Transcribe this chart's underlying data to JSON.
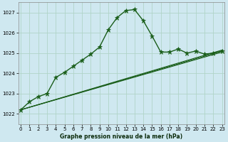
{
  "title": "Graphe pression niveau de la mer (hPa)",
  "bg_color": "#cfe8f0",
  "grid_color": "#b0d4c8",
  "line_color": "#1a5e1a",
  "x_ticks": [
    0,
    1,
    2,
    3,
    4,
    5,
    6,
    7,
    8,
    9,
    10,
    11,
    12,
    13,
    14,
    15,
    16,
    17,
    18,
    19,
    20,
    21,
    22,
    23
  ],
  "y_ticks": [
    1022,
    1023,
    1024,
    1025,
    1026,
    1027
  ],
  "ylim": [
    1021.5,
    1027.5
  ],
  "xlim": [
    -0.3,
    23.3
  ],
  "main_series": {
    "x": [
      0,
      1,
      2,
      3,
      4,
      5,
      6,
      7,
      8,
      9,
      10,
      11,
      12,
      13,
      14,
      15,
      16,
      17,
      18,
      19,
      20,
      21,
      22,
      23
    ],
    "y": [
      1022.2,
      1022.6,
      1022.85,
      1023.0,
      1023.8,
      1024.05,
      1024.35,
      1024.65,
      1024.95,
      1025.3,
      1026.15,
      1026.75,
      1027.1,
      1027.15,
      1026.6,
      1025.85,
      1025.05,
      1025.05,
      1025.2,
      1025.0,
      1025.1,
      1024.95,
      1025.0,
      1025.1
    ]
  },
  "linear_series": [
    {
      "x": [
        0,
        23
      ],
      "y": [
        1022.2,
        1025.05
      ]
    },
    {
      "x": [
        0,
        23
      ],
      "y": [
        1022.2,
        1025.1
      ]
    },
    {
      "x": [
        0,
        23
      ],
      "y": [
        1022.2,
        1025.15
      ]
    }
  ]
}
